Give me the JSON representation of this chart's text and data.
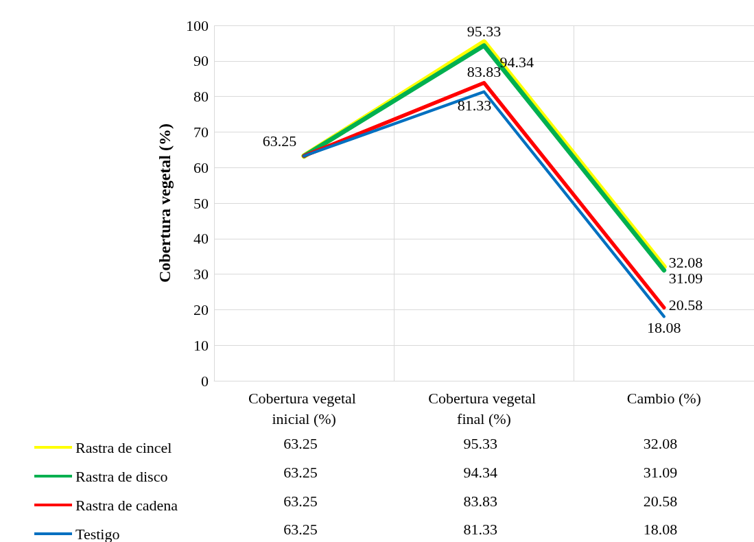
{
  "chart_data": {
    "type": "line",
    "ylabel": "Cobertura vegetal (%)",
    "categories": [
      "Cobertura vegetal inicial (%)",
      "Cobertura vegetal final (%)",
      "Cambio (%)"
    ],
    "series": [
      {
        "name": "Rastra de cincel",
        "color": "#ffff00",
        "values": [
          63.25,
          95.33,
          32.08
        ],
        "value_labels": [
          "63.25",
          "95.33",
          "32.08"
        ]
      },
      {
        "name": "Rastra de disco",
        "color": "#00b050",
        "values": [
          63.25,
          94.34,
          31.09
        ],
        "value_labels": [
          null,
          "94.34",
          "31.09"
        ]
      },
      {
        "name": "Rastra de cadena",
        "color": "#ff0000",
        "values": [
          63.25,
          83.83,
          20.58
        ],
        "value_labels": [
          null,
          "83.83",
          "20.58"
        ]
      },
      {
        "name": "Testigo",
        "color": "#0070c0",
        "values": [
          63.25,
          81.33,
          18.08
        ],
        "value_labels": [
          null,
          "81.33",
          "18.08"
        ]
      }
    ],
    "ylim": [
      0,
      100
    ],
    "yticks": [
      0,
      10,
      20,
      30,
      40,
      50,
      60,
      70,
      80,
      90,
      100
    ],
    "grid": true,
    "legend": "bottom left",
    "marker": "none",
    "line_style": "solid",
    "data_labels": true
  }
}
